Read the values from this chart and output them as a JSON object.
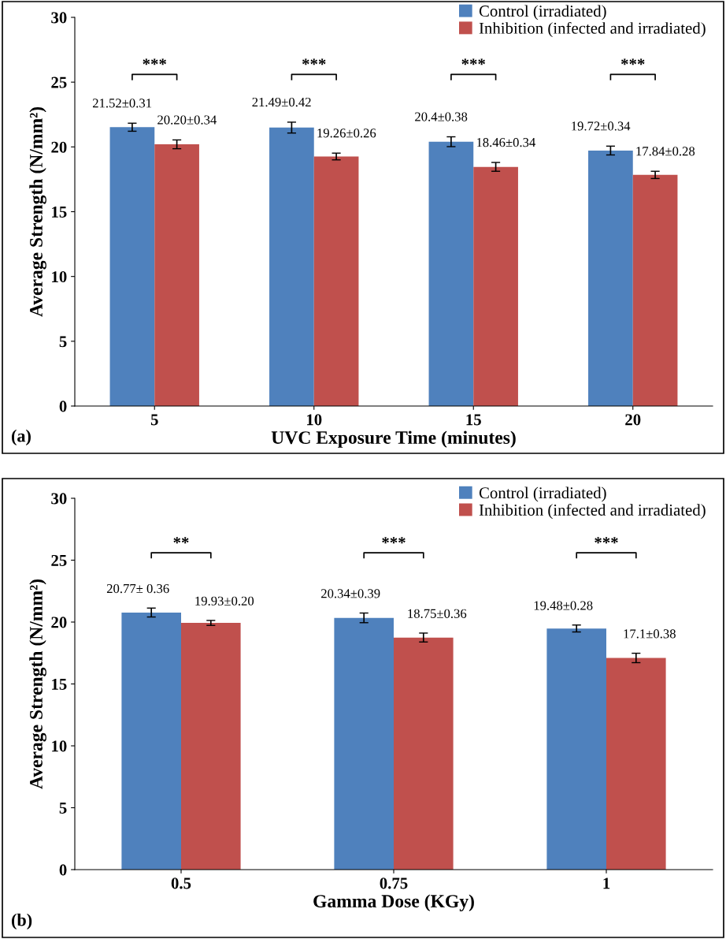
{
  "chart_data": [
    {
      "type": "bar",
      "ylabel": "Average Strength (N/mm²)",
      "xlabel": "UVC Exposure Time (minutes)",
      "categories": [
        "5",
        "10",
        "15",
        "20"
      ],
      "ylim": [
        0,
        30
      ],
      "yticks": [
        0,
        5,
        10,
        15,
        20,
        25,
        30
      ],
      "legend": "top right",
      "grid": false,
      "series": [
        {
          "name": "Control (irradiated)",
          "color": "#4f81bd",
          "values": [
            21.52,
            21.49,
            20.4,
            19.72
          ],
          "errors": [
            0.31,
            0.42,
            0.38,
            0.34
          ],
          "value_labels": [
            "21.52±0.31",
            "21.49±0.42",
            "20.4±0.38",
            "19.72±0.34"
          ]
        },
        {
          "name": "Inhibition (infected and irradiated)",
          "color": "#c0504d",
          "values": [
            20.2,
            19.26,
            18.46,
            17.84
          ],
          "errors": [
            0.34,
            0.26,
            0.34,
            0.28
          ],
          "value_labels": [
            "20.20±0.34",
            "19.26±0.26",
            "18.46±0.34",
            "17.84±0.28"
          ]
        }
      ],
      "annotations": [
        "(a)",
        "***",
        "***",
        "***",
        "***"
      ]
    },
    {
      "type": "bar",
      "ylabel": "Average Strength (N/mm²)",
      "xlabel": "Gamma Dose (KGy)",
      "categories": [
        "0.5",
        "0.75",
        "1"
      ],
      "ylim": [
        0,
        30
      ],
      "yticks": [
        0,
        5,
        10,
        15,
        20,
        25,
        30
      ],
      "legend": "top right",
      "grid": false,
      "series": [
        {
          "name": "Control (irradiated)",
          "color": "#4f81bd",
          "values": [
            20.77,
            20.34,
            19.48
          ],
          "errors": [
            0.36,
            0.39,
            0.28
          ],
          "value_labels": [
            "20.77± 0.36",
            "20.34±0.39",
            "19.48±0.28"
          ]
        },
        {
          "name": "Inhibition (infected and irradiated)",
          "color": "#c0504d",
          "values": [
            19.93,
            18.75,
            17.1
          ],
          "errors": [
            0.2,
            0.36,
            0.38
          ],
          "value_labels": [
            "19.93±0.20",
            "18.75±0.36",
            "17.1±0.38"
          ]
        }
      ],
      "annotations": [
        "(b)",
        "**",
        "***",
        "***"
      ]
    }
  ]
}
